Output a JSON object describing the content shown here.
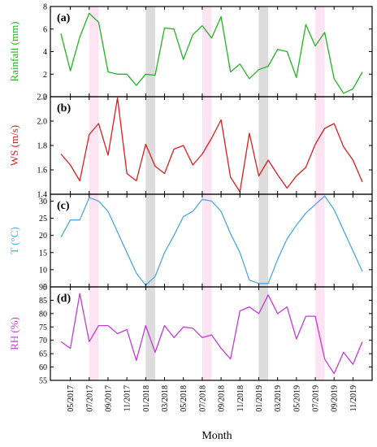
{
  "chart_data": {
    "type": "line",
    "xlabel": "Month",
    "x": [
      "04/2017",
      "05/2017",
      "06/2017",
      "07/2017",
      "08/2017",
      "09/2017",
      "10/2017",
      "11/2017",
      "12/2017",
      "01/2018",
      "02/2018",
      "03/2018",
      "04/2018",
      "05/2018",
      "06/2018",
      "07/2018",
      "08/2018",
      "09/2018",
      "10/2018",
      "11/2018",
      "12/2018",
      "01/2019",
      "02/2019",
      "03/2019",
      "04/2019",
      "05/2019",
      "06/2019",
      "07/2019",
      "08/2019",
      "09/2019",
      "10/2019",
      "11/2019",
      "12/2019"
    ],
    "x_tick_labels": [
      "05/2017",
      "07/2017",
      "09/2017",
      "11/2017",
      "01/2018",
      "03/2018",
      "05/2018",
      "07/2018",
      "09/2018",
      "11/2018",
      "01/2019",
      "03/2019",
      "05/2019",
      "07/2019",
      "09/2019",
      "11/2019"
    ],
    "shaded_periods": [
      {
        "start": "07/2017",
        "end": "08/2017",
        "color": "#fce4f2"
      },
      {
        "start": "01/2018",
        "end": "02/2018",
        "color": "#dcdcdc"
      },
      {
        "start": "07/2018",
        "end": "08/2018",
        "color": "#fce4f2"
      },
      {
        "start": "01/2019",
        "end": "02/2019",
        "color": "#dcdcdc"
      },
      {
        "start": "07/2019",
        "end": "08/2019",
        "color": "#fce4f2"
      }
    ],
    "panels": [
      {
        "tag": "(a)",
        "ylabel": "Rainfall (mm)",
        "color": "#22b422",
        "ylim": [
          0,
          8
        ],
        "yticks": [
          0,
          2,
          4,
          6,
          8
        ],
        "values": [
          5.6,
          2.3,
          5.3,
          7.4,
          6.6,
          2.2,
          2.0,
          2.0,
          1.0,
          2.0,
          1.9,
          6.1,
          6.0,
          3.3,
          5.5,
          6.3,
          5.2,
          7.1,
          2.2,
          2.9,
          1.6,
          2.4,
          2.7,
          4.2,
          4.0,
          1.7,
          6.4,
          4.5,
          5.7,
          1.6,
          0.3,
          0.7,
          2.2
        ]
      },
      {
        "tag": "(b)",
        "ylabel": "WS (m/s)",
        "color": "#d42020",
        "ylim": [
          1.4,
          2.2
        ],
        "yticks": [
          1.4,
          1.6,
          1.8,
          2.0,
          2.2
        ],
        "ytick_labels": [
          "1.4",
          "1.6",
          "1.8",
          "2.0",
          "2.2"
        ],
        "values": [
          1.73,
          1.64,
          1.51,
          1.89,
          1.98,
          1.72,
          2.19,
          1.57,
          1.51,
          1.81,
          1.63,
          1.57,
          1.77,
          1.8,
          1.64,
          1.73,
          1.86,
          2.01,
          1.54,
          1.42,
          1.9,
          1.55,
          1.68,
          1.56,
          1.45,
          1.55,
          1.62,
          1.81,
          1.94,
          1.98,
          1.79,
          1.68,
          1.5
        ]
      },
      {
        "tag": "(c)",
        "ylabel": "T (°C)",
        "color": "#4fa8de",
        "ylim": [
          5,
          32
        ],
        "yticks": [
          5,
          10,
          15,
          20,
          25,
          30
        ],
        "values": [
          19.5,
          24.5,
          24.5,
          31.0,
          30.0,
          27.0,
          21.0,
          15.0,
          9.0,
          5.5,
          8.0,
          15.0,
          20.0,
          25.5,
          27.0,
          30.5,
          30.0,
          27.0,
          20.5,
          15.0,
          7.0,
          6.0,
          6.0,
          13.0,
          19.0,
          23.0,
          26.5,
          29.0,
          31.5,
          27.5,
          21.5,
          15.5,
          9.5
        ]
      },
      {
        "tag": "(d)",
        "ylabel": "RH (%)",
        "color": "#c23bd4",
        "ylim": [
          55,
          90
        ],
        "yticks": [
          55,
          60,
          65,
          70,
          75,
          80,
          85,
          90
        ],
        "values": [
          69.5,
          67.0,
          87.5,
          69.5,
          75.5,
          75.5,
          72.5,
          74.0,
          62.5,
          75.5,
          65.5,
          75.5,
          71.0,
          75.0,
          74.5,
          71.0,
          72.0,
          67.0,
          63.0,
          81.0,
          82.5,
          80.0,
          87.0,
          80.0,
          82.5,
          70.5,
          79.0,
          79.0,
          63.0,
          57.5,
          65.5,
          61.0,
          69.5
        ]
      }
    ]
  }
}
